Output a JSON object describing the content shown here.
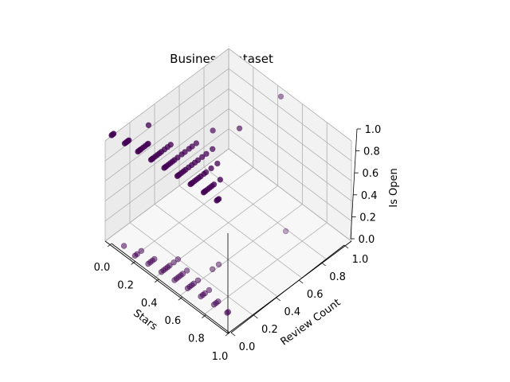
{
  "chart_data": {
    "type": "scatter",
    "projection": "3d",
    "title": "Business Dataset",
    "xlabel": "Stars",
    "ylabel": "Review Count",
    "zlabel": "Is Open",
    "xlim": [
      0,
      1
    ],
    "ylim": [
      0,
      1
    ],
    "zlim": [
      0,
      1
    ],
    "x_ticks": [
      "0.0",
      "0.2",
      "0.4",
      "0.6",
      "0.8",
      "1.0"
    ],
    "y_ticks": [
      "0.0",
      "0.2",
      "0.4",
      "0.6",
      "0.8",
      "1.0"
    ],
    "z_ticks": [
      "0.0",
      "0.2",
      "0.4",
      "0.6",
      "0.8",
      "1.0"
    ],
    "grid": true,
    "legend": "none",
    "marker_color": "#440154",
    "series": [
      {
        "points": [
          [
            0.0,
            0.0,
            1
          ],
          [
            0.0,
            0.01,
            1
          ],
          [
            0.0,
            0.02,
            1
          ],
          [
            0.125,
            0.0,
            1
          ],
          [
            0.125,
            0.01,
            1
          ],
          [
            0.125,
            0.02,
            1
          ],
          [
            0.125,
            0.03,
            1
          ],
          [
            0.125,
            0.04,
            1
          ],
          [
            0.25,
            0.0,
            1
          ],
          [
            0.25,
            0.01,
            1
          ],
          [
            0.25,
            0.02,
            1
          ],
          [
            0.25,
            0.03,
            1
          ],
          [
            0.25,
            0.05,
            1
          ],
          [
            0.25,
            0.07,
            1
          ],
          [
            0.25,
            0.09,
            1
          ],
          [
            0.25,
            0.1,
            1
          ],
          [
            0.375,
            0.0,
            1
          ],
          [
            0.375,
            0.01,
            1
          ],
          [
            0.375,
            0.02,
            1
          ],
          [
            0.375,
            0.04,
            1
          ],
          [
            0.375,
            0.06,
            1
          ],
          [
            0.375,
            0.08,
            1
          ],
          [
            0.375,
            0.1,
            1
          ],
          [
            0.375,
            0.13,
            1
          ],
          [
            0.375,
            0.16,
            1
          ],
          [
            0.375,
            0.19,
            1
          ],
          [
            0.5,
            0.0,
            1
          ],
          [
            0.5,
            0.01,
            1
          ],
          [
            0.5,
            0.02,
            1
          ],
          [
            0.5,
            0.04,
            1
          ],
          [
            0.5,
            0.06,
            1
          ],
          [
            0.5,
            0.08,
            1
          ],
          [
            0.5,
            0.1,
            1
          ],
          [
            0.5,
            0.13,
            1
          ],
          [
            0.5,
            0.17,
            1
          ],
          [
            0.5,
            0.2,
            1
          ],
          [
            0.5,
            0.24,
            1
          ],
          [
            0.5,
            0.27,
            1
          ],
          [
            0.5,
            0.31,
            1
          ],
          [
            0.625,
            0.0,
            1
          ],
          [
            0.625,
            0.01,
            1
          ],
          [
            0.625,
            0.02,
            1
          ],
          [
            0.625,
            0.04,
            1
          ],
          [
            0.625,
            0.06,
            1
          ],
          [
            0.625,
            0.08,
            1
          ],
          [
            0.625,
            0.11,
            1
          ],
          [
            0.625,
            0.14,
            1
          ],
          [
            0.625,
            0.17,
            1
          ],
          [
            0.625,
            0.2,
            1
          ],
          [
            0.625,
            0.24,
            1
          ],
          [
            0.625,
            0.28,
            1
          ],
          [
            0.625,
            0.34,
            1
          ],
          [
            0.75,
            0.0,
            1
          ],
          [
            0.75,
            0.01,
            1
          ],
          [
            0.75,
            0.02,
            1
          ],
          [
            0.75,
            0.04,
            1
          ],
          [
            0.75,
            0.06,
            1
          ],
          [
            0.75,
            0.08,
            1
          ],
          [
            0.75,
            0.1,
            1
          ],
          [
            0.75,
            0.13,
            1
          ],
          [
            0.75,
            0.15,
            1
          ],
          [
            0.75,
            0.2,
            1
          ],
          [
            0.75,
            0.26,
            1
          ],
          [
            0.875,
            0.0,
            1
          ],
          [
            0.875,
            0.01,
            1
          ],
          [
            0.875,
            0.02,
            1
          ],
          [
            0.875,
            0.04,
            1
          ],
          [
            0.875,
            0.06,
            1
          ],
          [
            0.875,
            0.08,
            1
          ],
          [
            0.875,
            0.1,
            1
          ],
          [
            0.875,
            0.16,
            1
          ],
          [
            1.0,
            0.0,
            1
          ],
          [
            1.0,
            0.01,
            1
          ],
          [
            1.0,
            0.02,
            1
          ],
          [
            0.5,
            0.47,
            1
          ],
          [
            0.125,
            0.23,
            1
          ],
          [
            0.625,
            0.6,
            1
          ],
          [
            0.625,
            1.0,
            1
          ],
          [
            0.0,
            0.02,
            0
          ],
          [
            0.125,
            0.0,
            0
          ],
          [
            0.125,
            0.02,
            0
          ],
          [
            0.125,
            0.06,
            0
          ],
          [
            0.25,
            0.0,
            0
          ],
          [
            0.25,
            0.02,
            0
          ],
          [
            0.25,
            0.04,
            0
          ],
          [
            0.25,
            0.06,
            0
          ],
          [
            0.375,
            0.0,
            0
          ],
          [
            0.375,
            0.02,
            0
          ],
          [
            0.375,
            0.04,
            0
          ],
          [
            0.375,
            0.06,
            0
          ],
          [
            0.375,
            0.08,
            0
          ],
          [
            0.375,
            0.12,
            0
          ],
          [
            0.375,
            0.16,
            0
          ],
          [
            0.5,
            0.0,
            0
          ],
          [
            0.5,
            0.02,
            0
          ],
          [
            0.5,
            0.04,
            0
          ],
          [
            0.5,
            0.06,
            0
          ],
          [
            0.5,
            0.08,
            0
          ],
          [
            0.5,
            0.12,
            0
          ],
          [
            0.625,
            0.0,
            0
          ],
          [
            0.625,
            0.02,
            0
          ],
          [
            0.625,
            0.04,
            0
          ],
          [
            0.625,
            0.06,
            0
          ],
          [
            0.625,
            0.1,
            0
          ],
          [
            0.625,
            0.3,
            0
          ],
          [
            0.625,
            0.24,
            0
          ],
          [
            0.75,
            0.0,
            0
          ],
          [
            0.75,
            0.02,
            0
          ],
          [
            0.75,
            0.04,
            0
          ],
          [
            0.75,
            0.08,
            0
          ],
          [
            0.875,
            0.0,
            0
          ],
          [
            0.875,
            0.02,
            0
          ],
          [
            0.875,
            0.04,
            0
          ],
          [
            1.0,
            0.0,
            0
          ],
          [
            1.0,
            0.01,
            0
          ],
          [
            0.75,
            0.82,
            0
          ]
        ]
      }
    ]
  }
}
